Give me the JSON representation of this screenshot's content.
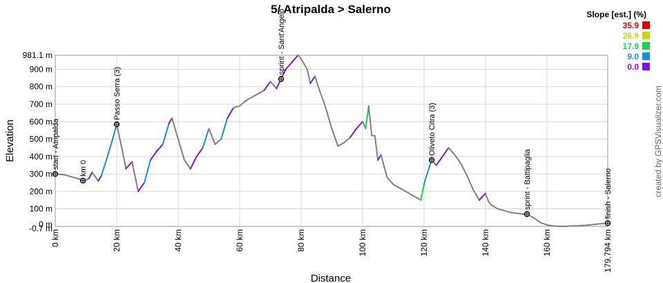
{
  "chart_data": {
    "type": "area",
    "title": "5/ Atripalda > Salerno",
    "xlabel": "Distance",
    "ylabel": "Elevation",
    "xlim": [
      0,
      179.794
    ],
    "ylim": [
      -0.7,
      981.1
    ],
    "x_ticks": [
      {
        "v": 0,
        "label": "0 km"
      },
      {
        "v": 20,
        "label": "20 km"
      },
      {
        "v": 40,
        "label": "40 km"
      },
      {
        "v": 60,
        "label": "60 km"
      },
      {
        "v": 80,
        "label": "80 km"
      },
      {
        "v": 100,
        "label": "100 km"
      },
      {
        "v": 120,
        "label": "120 km"
      },
      {
        "v": 140,
        "label": "140 km"
      },
      {
        "v": 160,
        "label": "160 km"
      },
      {
        "v": 179.794,
        "label": "179.794 km"
      }
    ],
    "y_ticks": [
      {
        "v": 981.1,
        "label": "981.1 m"
      },
      {
        "v": 900,
        "label": "900 m"
      },
      {
        "v": 800,
        "label": "800 m"
      },
      {
        "v": 700,
        "label": "700 m"
      },
      {
        "v": 600,
        "label": "600 m"
      },
      {
        "v": 500,
        "label": "500 m"
      },
      {
        "v": 400,
        "label": "400 m"
      },
      {
        "v": 300,
        "label": "300 m"
      },
      {
        "v": 200,
        "label": "200 m"
      },
      {
        "v": 100,
        "label": "100 m"
      },
      {
        "v": 0,
        "label": "0 m"
      },
      {
        "v": -0.7,
        "label": "-0.7 m"
      }
    ],
    "grid": true,
    "legend": {
      "title": "Slope [est.] (%)",
      "placement": "top-right",
      "items": [
        {
          "label": "35.9",
          "color": "#e00000"
        },
        {
          "label": "26.9",
          "color": "#c8d800"
        },
        {
          "label": "17.9",
          "color": "#10d848"
        },
        {
          "label": "9.0",
          "color": "#1090e0"
        },
        {
          "label": "0.0",
          "color": "#8010e8"
        }
      ]
    },
    "profile": {
      "x": [
        0,
        3,
        6,
        8,
        9,
        11,
        12,
        14,
        15,
        17,
        19,
        20,
        22,
        23,
        25,
        27,
        29,
        31,
        33,
        35,
        37,
        38,
        40,
        42,
        44,
        46,
        48,
        50,
        52,
        54,
        56,
        58,
        60,
        62,
        64,
        66,
        68,
        70,
        72,
        73.5,
        75,
        77,
        79,
        80,
        82,
        83,
        84.5,
        86,
        88,
        90,
        92,
        94,
        96,
        98,
        100,
        101,
        102,
        103,
        104,
        105,
        106,
        108,
        110,
        112,
        114,
        116,
        118,
        119,
        120,
        121,
        122.5,
        124,
        126,
        128,
        130,
        132,
        134,
        136,
        138,
        140,
        141,
        142,
        144,
        146,
        148,
        150,
        152,
        154,
        156,
        158,
        160,
        162,
        164,
        166,
        168,
        170,
        172,
        174,
        176,
        178,
        179.794
      ],
      "y": [
        300,
        295,
        280,
        270,
        255,
        275,
        310,
        260,
        290,
        400,
        520,
        585,
        420,
        330,
        370,
        200,
        250,
        380,
        430,
        470,
        590,
        620,
        500,
        380,
        330,
        400,
        450,
        560,
        470,
        500,
        620,
        680,
        690,
        720,
        740,
        760,
        780,
        830,
        790,
        845,
        900,
        940,
        981,
        960,
        900,
        820,
        860,
        780,
        680,
        560,
        460,
        480,
        510,
        560,
        600,
        560,
        690,
        520,
        520,
        380,
        410,
        280,
        240,
        220,
        200,
        180,
        160,
        150,
        240,
        300,
        380,
        350,
        400,
        450,
        410,
        360,
        290,
        210,
        150,
        190,
        140,
        120,
        100,
        90,
        80,
        75,
        70,
        65,
        45,
        20,
        8,
        2,
        0,
        0,
        2,
        3,
        5,
        8,
        12,
        15,
        18
      ]
    },
    "waypoints": [
      {
        "x": 0,
        "y": 300,
        "label": "start - Atripalda"
      },
      {
        "x": 9,
        "y": 262,
        "label": "km 0"
      },
      {
        "x": 20,
        "y": 585,
        "label": "Passo Serra (3)"
      },
      {
        "x": 73.5,
        "y": 845,
        "label": "sprint - Sant'Angelo"
      },
      {
        "x": 122.5,
        "y": 380,
        "label": "Oliveto Citra (3)"
      },
      {
        "x": 153.5,
        "y": 70,
        "label": "sprint - Battipaglia"
      },
      {
        "x": 179.794,
        "y": 18,
        "label": "finish - Salerno"
      }
    ]
  },
  "credit": "created by GPSVisualizer.com"
}
